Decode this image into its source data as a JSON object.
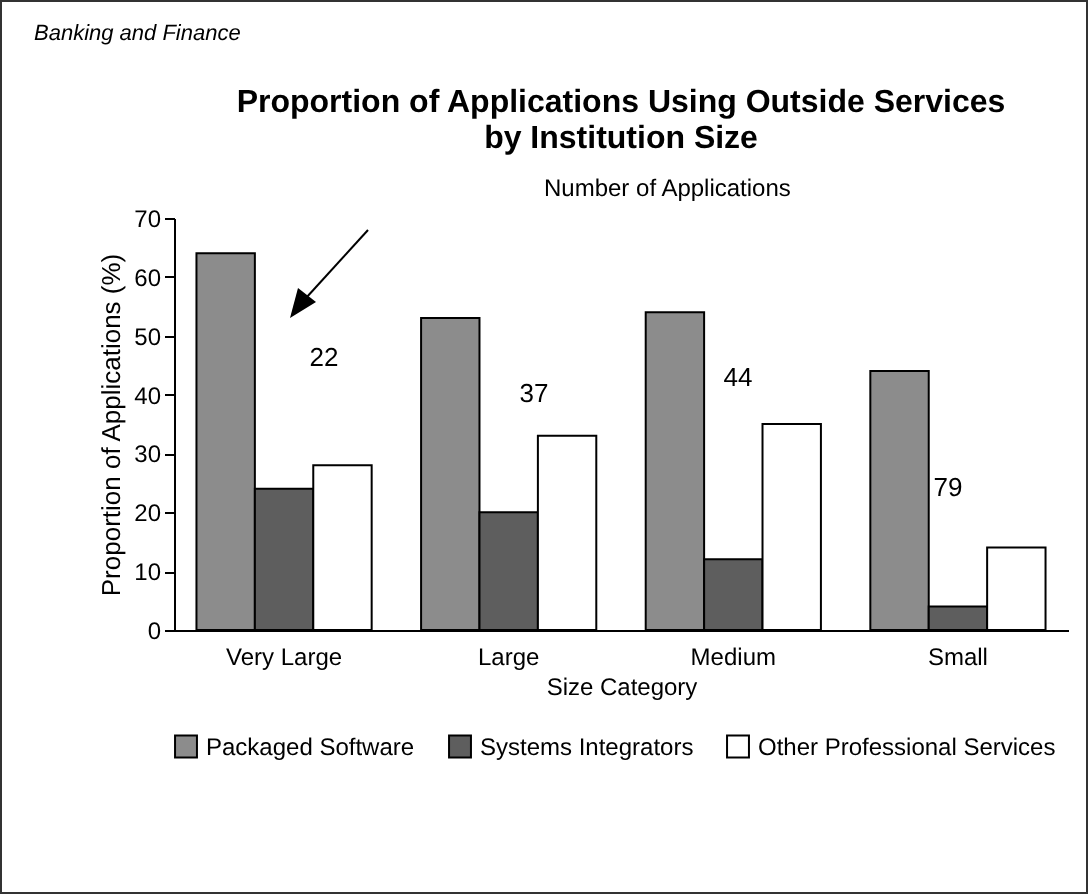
{
  "chart_data": {
    "type": "bar",
    "title": "Proportion of Applications Using Outside Services\nby Institution Size",
    "xlabel": "Size Category",
    "ylabel": "Proportion of Applications (%)",
    "categories": [
      "Very Large",
      "Large",
      "Medium",
      "Small"
    ],
    "series": [
      {
        "name": "Packaged Software",
        "color": "#8c8c8c",
        "values": [
          64,
          53,
          54,
          44
        ]
      },
      {
        "name": "Systems Integrators",
        "color": "#5e5e5e",
        "values": [
          24,
          20,
          12,
          4
        ]
      },
      {
        "name": "Other Professional Services",
        "color": "#ffffff",
        "values": [
          28,
          33,
          35,
          14
        ]
      }
    ],
    "ylim": [
      0,
      70
    ],
    "yticks": [
      0,
      10,
      20,
      30,
      40,
      50,
      60,
      70
    ],
    "grid": false,
    "legend": "bottom",
    "annotations": [
      "Banking and Finance",
      "Number of Applications",
      "22",
      "37",
      "44",
      "79"
    ]
  }
}
